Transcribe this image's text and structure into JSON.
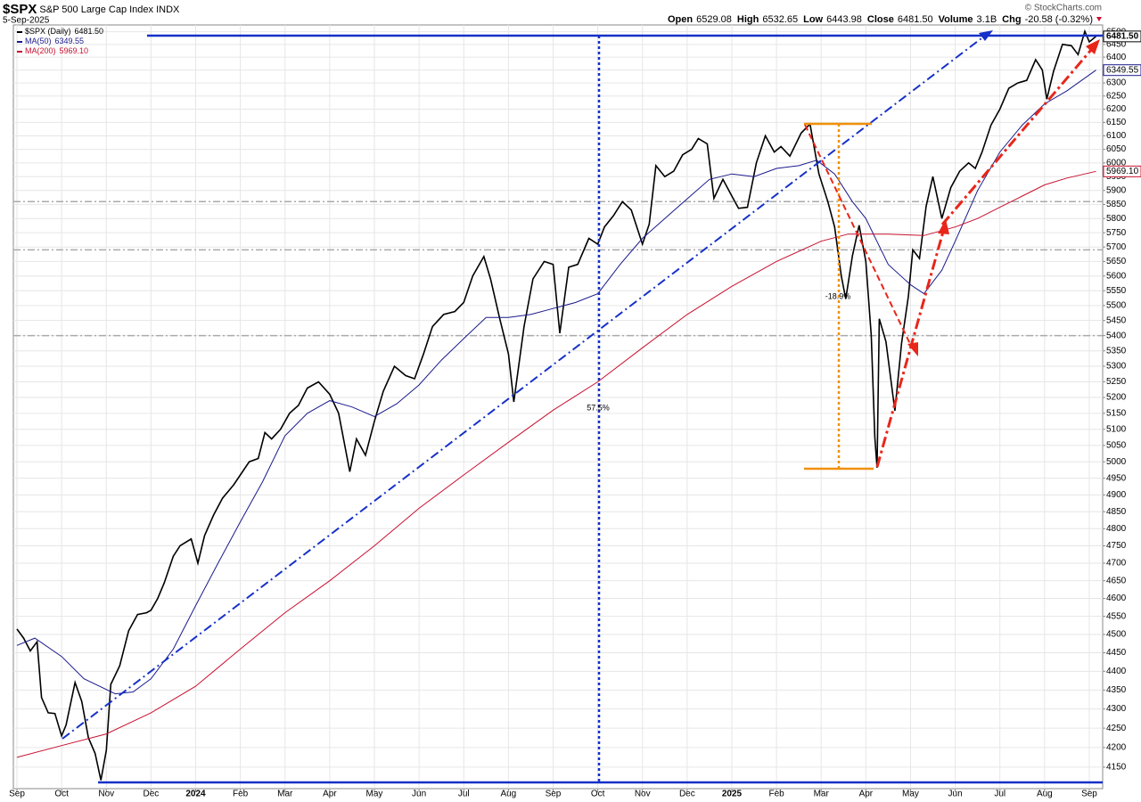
{
  "header": {
    "symbol": "$SPX",
    "name": "S&P 500 Large Cap Index",
    "exchange": "INDX",
    "date": "5-Sep-2025",
    "copyright": "© StockCharts.com",
    "quote": [
      {
        "label": "Open",
        "value": "6529.08"
      },
      {
        "label": "High",
        "value": "6532.65"
      },
      {
        "label": "Low",
        "value": "6443.98"
      },
      {
        "label": "Close",
        "value": "6481.50"
      },
      {
        "label": "Volume",
        "value": "3.1B"
      },
      {
        "label": "Chg",
        "value": "-20.58 (-0.32%)"
      }
    ]
  },
  "chart_data": {
    "type": "line",
    "log_scale": true,
    "grid": true,
    "legend": "top-left",
    "annotations": [
      "57.5%",
      "-18.9%"
    ],
    "ref_lines": [
      5860,
      5690,
      5400
    ],
    "xlim": [
      -0.08,
      24.3
    ],
    "xticks": [
      {
        "value": 0,
        "label": "Sep"
      },
      {
        "value": 1,
        "label": "Oct"
      },
      {
        "value": 2,
        "label": "Nov"
      },
      {
        "value": 3,
        "label": "Dec"
      },
      {
        "value": 4,
        "label": "2024"
      },
      {
        "value": 5,
        "label": "Feb"
      },
      {
        "value": 6,
        "label": "Mar"
      },
      {
        "value": 7,
        "label": "Apr"
      },
      {
        "value": 8,
        "label": "May"
      },
      {
        "value": 9,
        "label": "Jun"
      },
      {
        "value": 10,
        "label": "Jul"
      },
      {
        "value": 11,
        "label": "Aug"
      },
      {
        "value": 12,
        "label": "Sep"
      },
      {
        "value": 13,
        "label": "Oct"
      },
      {
        "value": 14,
        "label": "Nov"
      },
      {
        "value": 15,
        "label": "Dec"
      },
      {
        "value": 16,
        "label": "2025"
      },
      {
        "value": 17,
        "label": "Feb"
      },
      {
        "value": 18,
        "label": "Mar"
      },
      {
        "value": 19,
        "label": "Apr"
      },
      {
        "value": 20,
        "label": "May"
      },
      {
        "value": 21,
        "label": "Jun"
      },
      {
        "value": 22,
        "label": "Jul"
      },
      {
        "value": 23,
        "label": "Aug"
      },
      {
        "value": 24,
        "label": "Sep"
      }
    ],
    "ylim": [
      4096,
      6527
    ],
    "yticks": [
      4150,
      4200,
      4250,
      4300,
      4350,
      4400,
      4450,
      4500,
      4550,
      4600,
      4650,
      4700,
      4750,
      4800,
      4850,
      4900,
      4950,
      5000,
      5050,
      5100,
      5150,
      5200,
      5250,
      5300,
      5350,
      5400,
      5450,
      5500,
      5550,
      5600,
      5650,
      5700,
      5750,
      5800,
      5850,
      5900,
      5950,
      6000,
      6050,
      6100,
      6150,
      6200,
      6250,
      6300,
      6350,
      6400,
      6450,
      6500
    ],
    "series": [
      {
        "name": "$SPX (Daily)",
        "color": "#000000",
        "last": 6481.5,
        "last_label": "6481.50",
        "x": [
          0,
          0.15,
          0.3,
          0.45,
          0.55,
          0.7,
          0.85,
          1.0,
          1.1,
          1.3,
          1.45,
          1.6,
          1.75,
          1.88,
          2.0,
          2.1,
          2.3,
          2.5,
          2.7,
          2.9,
          3.0,
          3.15,
          3.3,
          3.5,
          3.65,
          3.9,
          4.05,
          4.2,
          4.4,
          4.6,
          4.85,
          5.0,
          5.2,
          5.4,
          5.55,
          5.7,
          5.9,
          6.1,
          6.3,
          6.5,
          6.75,
          7.0,
          7.2,
          7.45,
          7.6,
          7.8,
          8.0,
          8.2,
          8.45,
          8.7,
          8.9,
          9.1,
          9.3,
          9.55,
          9.8,
          10.0,
          10.2,
          10.45,
          10.6,
          10.8,
          11.0,
          11.12,
          11.35,
          11.55,
          11.8,
          12.0,
          12.15,
          12.35,
          12.55,
          12.8,
          13.0,
          13.15,
          13.35,
          13.55,
          13.75,
          14.0,
          14.15,
          14.3,
          14.5,
          14.7,
          14.9,
          15.1,
          15.25,
          15.45,
          15.6,
          15.8,
          16.0,
          16.15,
          16.35,
          16.55,
          16.75,
          16.95,
          17.1,
          17.3,
          17.55,
          17.75,
          17.95,
          18.15,
          18.3,
          18.45,
          18.55,
          18.7,
          18.85,
          19.0,
          19.12,
          19.2,
          19.25,
          19.3,
          19.45,
          19.65,
          19.8,
          19.95,
          20.05,
          20.2,
          20.35,
          20.5,
          20.7,
          20.9,
          21.1,
          21.3,
          21.45,
          21.6,
          21.8,
          22.0,
          22.2,
          22.4,
          22.6,
          22.8,
          22.95,
          23.05,
          23.2,
          23.4,
          23.6,
          23.75,
          23.9,
          24.0,
          24.15
        ],
        "values": [
          4515,
          4490,
          4455,
          4480,
          4330,
          4290,
          4288,
          4230,
          4258,
          4370,
          4320,
          4225,
          4185,
          4117,
          4193,
          4365,
          4415,
          4510,
          4555,
          4560,
          4567,
          4600,
          4645,
          4720,
          4750,
          4770,
          4700,
          4780,
          4840,
          4890,
          4930,
          4960,
          5000,
          5010,
          5090,
          5070,
          5100,
          5150,
          5175,
          5230,
          5250,
          5210,
          5150,
          4970,
          5070,
          5020,
          5125,
          5220,
          5300,
          5270,
          5260,
          5340,
          5430,
          5470,
          5480,
          5510,
          5600,
          5667,
          5590,
          5460,
          5340,
          5186,
          5430,
          5590,
          5650,
          5640,
          5408,
          5630,
          5640,
          5730,
          5710,
          5770,
          5810,
          5860,
          5830,
          5710,
          5780,
          5990,
          5950,
          5970,
          6030,
          6050,
          6090,
          6070,
          5872,
          5940,
          5880,
          5836,
          5840,
          6000,
          6100,
          6040,
          6060,
          6025,
          6110,
          6144,
          5960,
          5860,
          5770,
          5600,
          5522,
          5670,
          5776,
          5650,
          5400,
          5075,
          4982,
          5456,
          5380,
          5158,
          5375,
          5530,
          5690,
          5660,
          5844,
          5950,
          5800,
          5910,
          5970,
          6000,
          5980,
          6040,
          6140,
          6200,
          6280,
          6300,
          6310,
          6390,
          6350,
          6238,
          6345,
          6450,
          6445,
          6410,
          6502,
          6460,
          6481.5
        ]
      },
      {
        "name": "MA(50)",
        "color": "#1a1a8c",
        "last": 6349.55,
        "last_label": "6349.55",
        "x": [
          0,
          0.4,
          1.0,
          1.5,
          2.2,
          2.6,
          3.0,
          3.5,
          4.0,
          4.5,
          5.0,
          5.5,
          6.0,
          6.5,
          7.0,
          7.5,
          8.0,
          8.5,
          9.0,
          9.5,
          10.0,
          10.5,
          11.0,
          11.5,
          12.0,
          12.5,
          13.0,
          13.5,
          14.0,
          14.5,
          15.0,
          15.5,
          16.0,
          16.5,
          17.0,
          17.5,
          17.9,
          18.3,
          18.7,
          19.0,
          19.5,
          20.0,
          20.3,
          20.7,
          21.0,
          21.5,
          22.0,
          22.5,
          23.0,
          23.5,
          24.15
        ],
        "values": [
          4470,
          4490,
          4440,
          4380,
          4340,
          4345,
          4380,
          4460,
          4580,
          4700,
          4820,
          4940,
          5080,
          5150,
          5190,
          5170,
          5140,
          5180,
          5240,
          5320,
          5390,
          5460,
          5460,
          5470,
          5490,
          5510,
          5540,
          5640,
          5730,
          5800,
          5870,
          5940,
          5960,
          5950,
          5980,
          5990,
          6010,
          5960,
          5860,
          5800,
          5640,
          5570,
          5540,
          5620,
          5720,
          5900,
          6040,
          6140,
          6220,
          6270,
          6349.55
        ]
      },
      {
        "name": "MA(200)",
        "color": "#c8102e",
        "last": 5969.1,
        "last_label": "5969.10",
        "x": [
          0,
          1,
          2,
          3,
          4,
          5,
          6,
          7,
          8,
          9,
          10,
          11,
          12,
          13,
          14,
          15,
          16,
          17,
          18,
          18.6,
          19.5,
          20.3,
          21,
          21.5,
          22,
          22.5,
          23,
          23.5,
          24.15
        ],
        "values": [
          4175,
          4205,
          4235,
          4290,
          4360,
          4460,
          4560,
          4650,
          4750,
          4860,
          4960,
          5060,
          5160,
          5250,
          5360,
          5470,
          5565,
          5650,
          5720,
          5745,
          5745,
          5740,
          5770,
          5800,
          5840,
          5880,
          5920,
          5945,
          5969.1
        ]
      }
    ]
  }
}
